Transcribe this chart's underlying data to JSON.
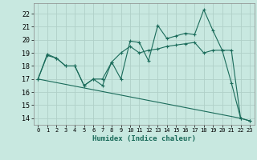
{
  "xlabel": "Humidex (Indice chaleur)",
  "background_color": "#c8e8e0",
  "grid_color": "#b0d0c8",
  "line_color": "#1a6b5a",
  "xlim": [
    -0.5,
    23.5
  ],
  "ylim": [
    13.5,
    22.8
  ],
  "yticks": [
    14,
    15,
    16,
    17,
    18,
    19,
    20,
    21,
    22
  ],
  "xticks": [
    0,
    1,
    2,
    3,
    4,
    5,
    6,
    7,
    8,
    9,
    10,
    11,
    12,
    13,
    14,
    15,
    16,
    17,
    18,
    19,
    20,
    21,
    22,
    23
  ],
  "line1_x": [
    0,
    1,
    2,
    3,
    4,
    5,
    6,
    7,
    8,
    9,
    10,
    11,
    12,
    13,
    14,
    15,
    16,
    17,
    18,
    19,
    20,
    21,
    22,
    23
  ],
  "line1_y": [
    17,
    18.9,
    18.6,
    18.0,
    18.0,
    16.5,
    17.0,
    16.5,
    18.3,
    17.0,
    19.9,
    19.8,
    18.4,
    21.1,
    20.1,
    20.3,
    20.5,
    20.4,
    22.3,
    20.7,
    19.2,
    16.7,
    14.0,
    13.8
  ],
  "line2_x": [
    0,
    1,
    2,
    3,
    4,
    5,
    6,
    7,
    8,
    9,
    10,
    11,
    12,
    13,
    14,
    15,
    16,
    17,
    18,
    19,
    20,
    21,
    22,
    23
  ],
  "line2_y": [
    17.0,
    18.8,
    18.6,
    18.0,
    18.0,
    16.5,
    17.0,
    17.0,
    18.3,
    19.0,
    19.5,
    19.0,
    19.2,
    19.3,
    19.5,
    19.6,
    19.7,
    19.8,
    19.0,
    19.2,
    19.2,
    19.2,
    14.0,
    13.8
  ],
  "line3_x": [
    0,
    22
  ],
  "line3_y": [
    17.0,
    14.0
  ]
}
